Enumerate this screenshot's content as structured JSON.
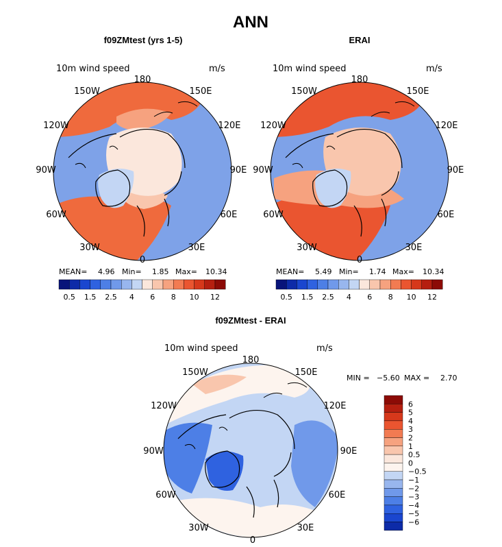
{
  "figure": {
    "title": "ANN",
    "colors": {
      "land": "#fbe6d6",
      "neutral": "#fef1e6",
      "coast": "#000000"
    }
  },
  "chart_data": [
    {
      "type": "heatmap",
      "projection": "north-polar-stereographic",
      "title": "f09ZMtest (yrs 1-5)",
      "variable": "10m wind speed",
      "units": "m/s",
      "lon_labels": [
        "180",
        "150E",
        "120E",
        "90E",
        "60E",
        "30E",
        "0",
        "30W",
        "60W",
        "90W",
        "120W",
        "150W"
      ],
      "stats": {
        "mean": 4.96,
        "min": 1.85,
        "max": 10.34
      },
      "stats_text": {
        "mean_label": "MEAN=",
        "mean": "4.96",
        "min_label": "Min=",
        "min": "1.85",
        "max_label": "Max=",
        "max": "10.34"
      },
      "colorbar": {
        "orientation": "horizontal",
        "levels": [
          0.5,
          1,
          1.5,
          2,
          2.5,
          3,
          4,
          5,
          6,
          7,
          8,
          9,
          10,
          11,
          12
        ],
        "tick_labels": [
          "0.5",
          "1.5",
          "2.5",
          "4",
          "6",
          "8",
          "10",
          "12"
        ],
        "colors": [
          "#08147a",
          "#0d2ba8",
          "#1a46cf",
          "#2f62e0",
          "#4d7fe6",
          "#7099ea",
          "#98b6ee",
          "#c3d6f4",
          "#fbe7dc",
          "#f9c6ad",
          "#f6a27f",
          "#f27b52",
          "#ea5530",
          "#d6381b",
          "#b51f10",
          "#8c0b06"
        ]
      }
    },
    {
      "type": "heatmap",
      "projection": "north-polar-stereographic",
      "title": "ERAI",
      "variable": "10m wind speed",
      "units": "m/s",
      "lon_labels": [
        "180",
        "150E",
        "120E",
        "90E",
        "60E",
        "30E",
        "0",
        "30W",
        "60W",
        "90W",
        "120W",
        "150W"
      ],
      "stats": {
        "mean": 5.49,
        "min": 1.74,
        "max": 10.34
      },
      "stats_text": {
        "mean_label": "MEAN=",
        "mean": "5.49",
        "min_label": "Min=",
        "min": "1.74",
        "max_label": "Max=",
        "max": "10.34"
      },
      "colorbar": {
        "orientation": "horizontal",
        "levels": [
          0.5,
          1,
          1.5,
          2,
          2.5,
          3,
          4,
          5,
          6,
          7,
          8,
          9,
          10,
          11,
          12
        ],
        "tick_labels": [
          "0.5",
          "1.5",
          "2.5",
          "4",
          "6",
          "8",
          "10",
          "12"
        ],
        "colors": [
          "#08147a",
          "#0d2ba8",
          "#1a46cf",
          "#2f62e0",
          "#4d7fe6",
          "#7099ea",
          "#98b6ee",
          "#c3d6f4",
          "#fbe7dc",
          "#f9c6ad",
          "#f6a27f",
          "#f27b52",
          "#ea5530",
          "#d6381b",
          "#b51f10",
          "#8c0b06"
        ]
      }
    },
    {
      "type": "heatmap",
      "projection": "north-polar-stereographic",
      "title": "f09ZMtest - ERAI",
      "variable": "10m wind speed",
      "units": "m/s",
      "lon_labels": [
        "180",
        "150E",
        "120E",
        "90E",
        "60E",
        "30E",
        "0",
        "30W",
        "60W",
        "90W",
        "120W",
        "150W"
      ],
      "stats": {
        "min": -5.6,
        "max": 2.7
      },
      "stats_text": {
        "min_label": "MIN =",
        "min": "−5.60",
        "max_label": "MAX =",
        "max": "2.70"
      },
      "colorbar": {
        "orientation": "vertical",
        "levels": [
          -6,
          -5,
          -4,
          -3,
          -2,
          -1,
          -0.5,
          0,
          0.5,
          1,
          2,
          3,
          4,
          5,
          6
        ],
        "tick_labels": [
          "6",
          "5",
          "4",
          "3",
          "2",
          "1",
          "0.5",
          "0",
          "−0.5",
          "−1",
          "−2",
          "−3",
          "−4",
          "−5",
          "−6"
        ],
        "colors_top_to_bottom": [
          "#8c0b06",
          "#b51f10",
          "#d6381b",
          "#ea5530",
          "#f27b52",
          "#f6a27f",
          "#f9c6ad",
          "#fbe7dc",
          "#fdf4ee",
          "#c3d6f4",
          "#98b6ee",
          "#7099ea",
          "#4d7fe6",
          "#2f62e0",
          "#1a46cf",
          "#0d2ba8"
        ]
      }
    }
  ]
}
